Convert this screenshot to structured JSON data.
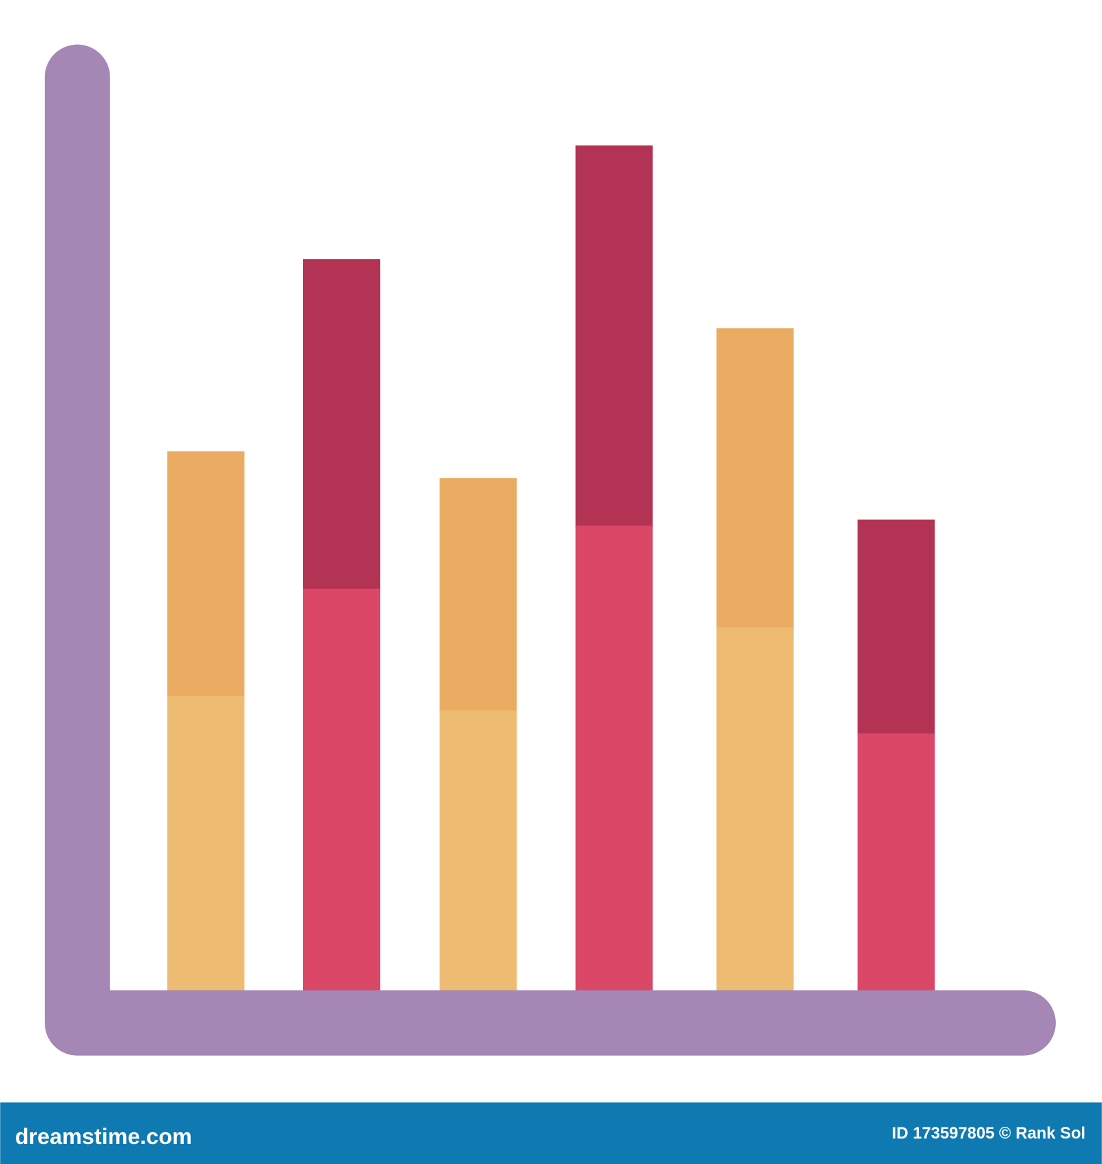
{
  "footer": {
    "site": "dreamstime.com",
    "credit": "ID 173597805 © Rank Sol"
  }
}
